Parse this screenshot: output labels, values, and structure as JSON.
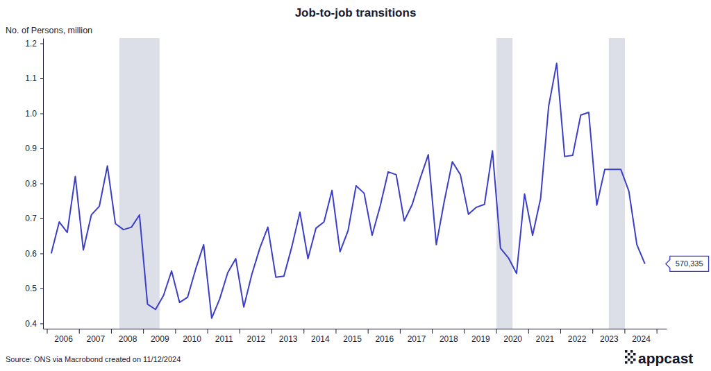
{
  "chart_data": {
    "type": "line",
    "title": "Job-to-job transitions",
    "y_label": "No. of Persons, million",
    "source": "Source: ONS via Macrobond created on 11/12/2024",
    "logo_text": "appcast",
    "color": "#3b3ec6",
    "x": [
      2006.125,
      2006.375,
      2006.625,
      2006.875,
      2007.125,
      2007.375,
      2007.625,
      2007.875,
      2008.125,
      2008.375,
      2008.625,
      2008.875,
      2009.125,
      2009.375,
      2009.625,
      2009.875,
      2010.125,
      2010.375,
      2010.625,
      2010.875,
      2011.125,
      2011.375,
      2011.625,
      2011.875,
      2012.125,
      2012.375,
      2012.625,
      2012.875,
      2013.125,
      2013.375,
      2013.625,
      2013.875,
      2014.125,
      2014.375,
      2014.625,
      2014.875,
      2015.125,
      2015.375,
      2015.625,
      2015.875,
      2016.125,
      2016.375,
      2016.625,
      2016.875,
      2017.125,
      2017.375,
      2017.625,
      2017.875,
      2018.125,
      2018.375,
      2018.625,
      2018.875,
      2019.125,
      2019.375,
      2019.625,
      2019.875,
      2020.125,
      2020.375,
      2020.625,
      2020.875,
      2021.125,
      2021.375,
      2021.625,
      2021.875,
      2022.125,
      2022.375,
      2022.625,
      2022.875,
      2023.125,
      2023.375,
      2023.625,
      2023.875,
      2024.125,
      2024.375,
      2024.625
    ],
    "values": [
      0.6,
      0.69,
      0.66,
      0.82,
      0.61,
      0.71,
      0.735,
      0.85,
      0.685,
      0.668,
      0.675,
      0.71,
      0.455,
      0.44,
      0.48,
      0.55,
      0.46,
      0.475,
      0.555,
      0.625,
      0.415,
      0.47,
      0.545,
      0.585,
      0.447,
      0.54,
      0.615,
      0.675,
      0.532,
      0.535,
      0.62,
      0.718,
      0.585,
      0.672,
      0.69,
      0.78,
      0.605,
      0.665,
      0.793,
      0.772,
      0.652,
      0.735,
      0.833,
      0.825,
      0.693,
      0.74,
      0.815,
      0.882,
      0.625,
      0.75,
      0.862,
      0.825,
      0.712,
      0.732,
      0.74,
      0.893,
      0.615,
      0.587,
      0.543,
      0.77,
      0.652,
      0.757,
      1.02,
      1.143,
      0.877,
      0.88,
      0.995,
      1.003,
      0.738,
      0.84,
      0.84,
      0.84,
      0.778,
      0.625,
      0.570335
    ],
    "shaded_periods": [
      {
        "start": 2008.25,
        "end": 2009.5
      },
      {
        "start": 2020,
        "end": 2020.5
      },
      {
        "start": 2023.5,
        "end": 2024
      }
    ],
    "annotations": [
      {
        "text": "570,335",
        "x": 2024.625,
        "y": 0.570335
      }
    ],
    "xlim": [
      2005.87,
      2025.3
    ],
    "xticks": [
      {
        "value": 2006.5,
        "label": "2006"
      },
      {
        "value": 2007.5,
        "label": "2007"
      },
      {
        "value": 2008.5,
        "label": "2008"
      },
      {
        "value": 2009.5,
        "label": "2009"
      },
      {
        "value": 2010.5,
        "label": "2010"
      },
      {
        "value": 2011.5,
        "label": "2011"
      },
      {
        "value": 2012.5,
        "label": "2012"
      },
      {
        "value": 2013.5,
        "label": "2013"
      },
      {
        "value": 2014.5,
        "label": "2014"
      },
      {
        "value": 2015.5,
        "label": "2015"
      },
      {
        "value": 2016.5,
        "label": "2016"
      },
      {
        "value": 2017.5,
        "label": "2017"
      },
      {
        "value": 2018.5,
        "label": "2018"
      },
      {
        "value": 2019.5,
        "label": "2019"
      },
      {
        "value": 2020.5,
        "label": "2020"
      },
      {
        "value": 2021.5,
        "label": "2021"
      },
      {
        "value": 2022.5,
        "label": "2022"
      },
      {
        "value": 2023.5,
        "label": "2023"
      },
      {
        "value": 2024.5,
        "label": "2024"
      }
    ],
    "ylim": [
      0.385,
      1.215
    ],
    "yticks": [
      0.4,
      0.5,
      0.6,
      0.7,
      0.8,
      0.9,
      {
        "value": 1,
        "label": "1.0"
      },
      1.1,
      1.2
    ],
    "grid": false
  }
}
